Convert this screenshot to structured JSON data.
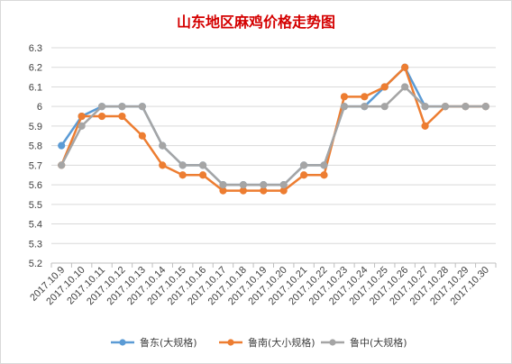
{
  "chart_data": {
    "type": "line",
    "title": "山东地区麻鸡价格走势图",
    "xlabel": "",
    "ylabel": "",
    "categories": [
      "2017.10.9",
      "2017.10.10",
      "2017.10.11",
      "2017.10.12",
      "2017.10.13",
      "2017.10.14",
      "2017.10.15",
      "2017.10.16",
      "2017.10.17",
      "2017.10.18",
      "2017.10.19",
      "2017.10.20",
      "2017.10.21",
      "2017.10.22",
      "2017.10.23",
      "2017.10.24",
      "2017.10.25",
      "2017.10.26",
      "2017.10.27",
      "2017.10.28",
      "2017.10.29",
      "2017.10.30"
    ],
    "ylim": [
      5.2,
      6.3
    ],
    "yticks": [
      "5.2",
      "5.3",
      "5.4",
      "5.5",
      "5.6",
      "5.7",
      "5.8",
      "5.9",
      "6",
      "6.1",
      "6.2",
      "6.3"
    ],
    "grid": true,
    "legend_position": "bottom",
    "series": [
      {
        "name": "鲁东(大规格)",
        "color": "#5b9bd5",
        "values": [
          5.8,
          5.95,
          6,
          6,
          6,
          5.8,
          5.7,
          5.7,
          5.6,
          5.6,
          5.6,
          5.6,
          5.7,
          5.7,
          6,
          6,
          6.1,
          6.2,
          6,
          6,
          6,
          6
        ]
      },
      {
        "name": "鲁南(大小规格)",
        "color": "#ed7d31",
        "values": [
          5.7,
          5.95,
          5.95,
          5.95,
          5.85,
          5.7,
          5.65,
          5.65,
          5.57,
          5.57,
          5.57,
          5.57,
          5.65,
          5.65,
          6.05,
          6.05,
          6.1,
          6.2,
          5.9,
          6,
          6,
          6
        ]
      },
      {
        "name": "鲁中(大规格)",
        "color": "#a5a5a5",
        "values": [
          5.7,
          5.9,
          6,
          6,
          6,
          5.8,
          5.7,
          5.7,
          5.6,
          5.6,
          5.6,
          5.6,
          5.7,
          5.7,
          6,
          6,
          6,
          6.1,
          6,
          6,
          6,
          6
        ]
      }
    ]
  }
}
